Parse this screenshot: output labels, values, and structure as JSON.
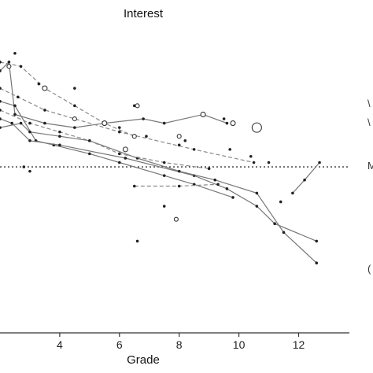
{
  "chart_data": {
    "type": "line",
    "title": "Interest",
    "xlabel": "Grade",
    "ylabel": "",
    "xlim": [
      2,
      13.7
    ],
    "ylim": [
      -1.9,
      1.55
    ],
    "xticks": [
      4,
      6,
      8,
      10,
      12
    ],
    "reference_line": {
      "y": 0,
      "style": "dotted"
    },
    "edge_fragments": [
      "M",
      "\\",
      "\\",
      "("
    ],
    "series": [
      {
        "style": "solid",
        "points": [
          [
            2.0,
            1.1
          ],
          [
            2.3,
            1.2
          ],
          [
            2.5,
            0.6
          ],
          [
            3.5,
            0.5
          ],
          [
            4.5,
            0.45
          ],
          [
            5.5,
            0.5
          ],
          [
            6.8,
            0.55
          ],
          [
            7.5,
            0.5
          ],
          [
            8.8,
            0.6
          ],
          [
            9.6,
            0.5
          ]
        ]
      },
      {
        "style": "dashed",
        "points": [
          [
            2.0,
            1.2
          ],
          [
            2.7,
            1.15
          ],
          [
            3.5,
            0.9
          ],
          [
            4.5,
            0.7
          ],
          [
            5.5,
            0.5
          ],
          [
            6.5,
            0.35
          ]
        ]
      },
      {
        "style": "solid",
        "points": [
          [
            2.0,
            0.75
          ],
          [
            2.5,
            0.7
          ],
          [
            3.2,
            0.3
          ],
          [
            3.8,
            0.25
          ],
          [
            5.0,
            0.15
          ],
          [
            6.0,
            0.05
          ],
          [
            7.5,
            -0.1
          ],
          [
            8.5,
            -0.2
          ],
          [
            9.8,
            -0.35
          ]
        ]
      },
      {
        "style": "solid",
        "points": [
          [
            2.0,
            0.55
          ],
          [
            2.4,
            0.5
          ],
          [
            3.0,
            0.3
          ],
          [
            4.0,
            0.25
          ],
          [
            6.2,
            0.1
          ],
          [
            8.5,
            -0.1
          ],
          [
            9.6,
            -0.25
          ],
          [
            10.6,
            -0.45
          ],
          [
            11.2,
            -0.65
          ],
          [
            12.6,
            -0.85
          ]
        ]
      },
      {
        "style": "solid",
        "points": [
          [
            2.0,
            0.45
          ],
          [
            2.7,
            0.5
          ],
          [
            3.0,
            0.4
          ],
          [
            4.0,
            0.35
          ],
          [
            5.0,
            0.3
          ],
          [
            6.6,
            0.1
          ],
          [
            8.0,
            -0.05
          ],
          [
            9.2,
            -0.15
          ],
          [
            10.6,
            -0.3
          ],
          [
            11.5,
            -0.75
          ],
          [
            12.6,
            -1.1
          ]
        ]
      },
      {
        "style": "dashed",
        "points": [
          [
            2.0,
            0.9
          ],
          [
            2.6,
            0.8
          ],
          [
            3.5,
            0.65
          ],
          [
            4.5,
            0.55
          ],
          [
            6.0,
            0.4
          ],
          [
            8.5,
            0.2
          ],
          [
            10.5,
            0.05
          ]
        ]
      },
      {
        "style": "dashed",
        "points": [
          [
            2.0,
            0.65
          ],
          [
            3.0,
            0.5
          ],
          [
            4.0,
            0.4
          ],
          [
            5.0,
            0.3
          ],
          [
            6.0,
            0.15
          ],
          [
            7.5,
            0.05
          ],
          [
            9.0,
            -0.02
          ]
        ]
      },
      {
        "style": "solid",
        "points": [
          [
            11.8,
            -0.3
          ],
          [
            12.2,
            -0.15
          ],
          [
            12.7,
            0.05
          ]
        ]
      },
      {
        "style": "dashed",
        "points": [
          [
            6.5,
            -0.22
          ],
          [
            8.0,
            -0.22
          ],
          [
            9.3,
            -0.2
          ]
        ]
      }
    ],
    "loose_points": [
      [
        2.5,
        1.3
      ],
      [
        3.3,
        0.95
      ],
      [
        4.5,
        0.9
      ],
      [
        6.0,
        0.45
      ],
      [
        6.5,
        0.7
      ],
      [
        6.9,
        0.35
      ],
      [
        8.0,
        0.25
      ],
      [
        9.5,
        0.55
      ],
      [
        10.4,
        0.12
      ],
      [
        11.0,
        0.05
      ],
      [
        11.4,
        -0.4
      ],
      [
        7.5,
        -0.45
      ],
      [
        7.9,
        -0.6
      ],
      [
        6.6,
        -0.85
      ],
      [
        8.2,
        0.3
      ],
      [
        9.7,
        0.2
      ],
      [
        2.8,
        0.0
      ],
      [
        3.0,
        -0.05
      ]
    ],
    "open_points": [
      {
        "x": 2.3,
        "y": 1.15,
        "size": 2.5
      },
      {
        "x": 3.5,
        "y": 0.9,
        "size": 3
      },
      {
        "x": 4.5,
        "y": 0.55,
        "size": 2.5
      },
      {
        "x": 6.2,
        "y": 0.2,
        "size": 3
      },
      {
        "x": 6.5,
        "y": 0.35,
        "size": 2.5
      },
      {
        "x": 5.5,
        "y": 0.5,
        "size": 3
      },
      {
        "x": 8.8,
        "y": 0.6,
        "size": 3
      },
      {
        "x": 9.8,
        "y": 0.5,
        "size": 3
      },
      {
        "x": 10.6,
        "y": 0.45,
        "size": 6
      },
      {
        "x": 8.0,
        "y": 0.35,
        "size": 2.5
      },
      {
        "x": 6.6,
        "y": 0.7,
        "size": 2.5
      },
      {
        "x": 7.9,
        "y": -0.6,
        "size": 2.5
      }
    ],
    "grid": false,
    "legend": "none"
  }
}
